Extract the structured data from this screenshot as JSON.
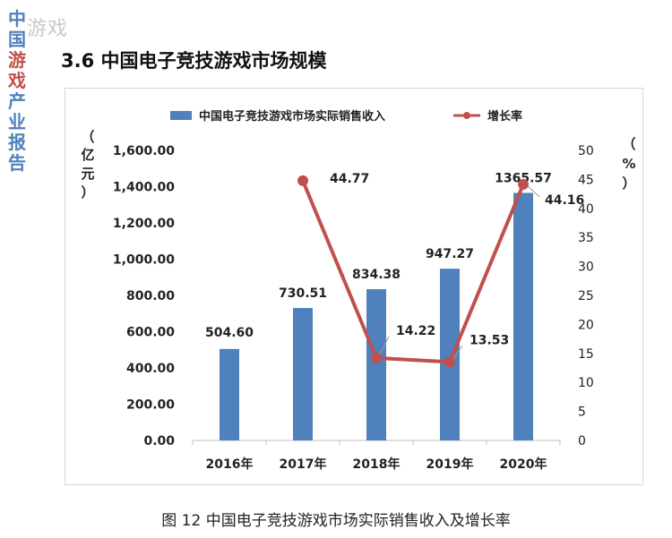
{
  "side_title": {
    "text": "中国游戏产业报告"
  },
  "watermark": {
    "text": "游戏"
  },
  "section_title": "3.6  中国电子竞技游戏市场规模",
  "caption": "图 12  中国电子竞技游戏市场实际销售收入及增长率",
  "colors": {
    "bar": "#4f81bd",
    "line": "#c0504d",
    "accent_blue": "#4f81bd",
    "accent_red": "#c0504d"
  },
  "chart_data": {
    "type": "bar+line",
    "title": "",
    "categories": [
      "2016年",
      "2017年",
      "2018年",
      "2019年",
      "2020年"
    ],
    "series": [
      {
        "name": "中国电子竞技游戏市场实际销售收入",
        "type": "bar",
        "axis": "left",
        "values": [
          504.6,
          730.51,
          834.38,
          947.27,
          1365.57
        ],
        "labels": [
          "504.60",
          "730.51",
          "834.38",
          "947.27",
          "1365.57"
        ]
      },
      {
        "name": "增长率",
        "type": "line",
        "axis": "right",
        "values": [
          null,
          44.77,
          14.22,
          13.53,
          44.16
        ],
        "labels": [
          "",
          "44.77",
          "14.22",
          "13.53",
          "44.16"
        ]
      }
    ],
    "y_left": {
      "label": "（亿元）",
      "label_chars": [
        "亿",
        "元",
        "）"
      ],
      "label_open": "（",
      "min": 0,
      "max": 1600,
      "ticks": [
        "0.00",
        "200.00",
        "400.00",
        "600.00",
        "800.00",
        "1,000.00",
        "1,200.00",
        "1,400.00",
        "1,600.00"
      ]
    },
    "y_right": {
      "label": "（%）",
      "label_chars": [
        "（",
        "%",
        "）"
      ],
      "min": 0,
      "max": 50,
      "ticks": [
        "0",
        "5",
        "10",
        "15",
        "20",
        "25",
        "30",
        "35",
        "40",
        "45",
        "50"
      ]
    },
    "legend_position": "top",
    "grid": false
  }
}
